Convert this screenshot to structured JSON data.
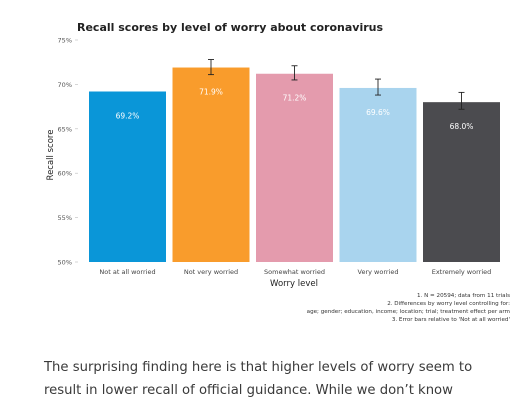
{
  "chart_data": {
    "type": "bar",
    "title": "Recall scores by level of worry about coronavirus",
    "xlabel": "Worry level",
    "ylabel": "Recall score",
    "ylim": [
      50,
      75
    ],
    "yticks": [
      "50%",
      "55%",
      "60%",
      "65%",
      "70%",
      "75%"
    ],
    "ytick_values": [
      50,
      55,
      60,
      65,
      70,
      75
    ],
    "categories": [
      "Not at all worried",
      "Not very worried",
      "Somewhat worried",
      "Very worried",
      "Extremely worried"
    ],
    "values": [
      69.2,
      71.9,
      71.2,
      69.6,
      68.0
    ],
    "value_labels": [
      "69.2%",
      "71.9%",
      "71.2%",
      "69.6%",
      "68.0%"
    ],
    "error_low": [
      null,
      71.1,
      70.5,
      68.8,
      67.2
    ],
    "error_high": [
      null,
      72.8,
      72.1,
      70.6,
      69.1
    ],
    "colors": [
      "#0a96d8",
      "#f99c2c",
      "#e49bad",
      "#a9d4ee",
      "#4b4b4f"
    ],
    "label_colors": [
      "#ffffff",
      "#ffffff",
      "#ffffff",
      "#ffffff",
      "#ffffff"
    ],
    "grid": false,
    "notes": [
      "1. N = 20594; data from 11 trials",
      "2. Differences by worry level controlling for:",
      "age; gender; education, income; location; trial; treatment effect per arm",
      "3. Error bars relative to 'Not at all worried'"
    ]
  },
  "body": {
    "line1": "The surprising finding here is that higher levels of worry seem to",
    "line2": "result in lower recall of official guidance. While we don’t know"
  }
}
